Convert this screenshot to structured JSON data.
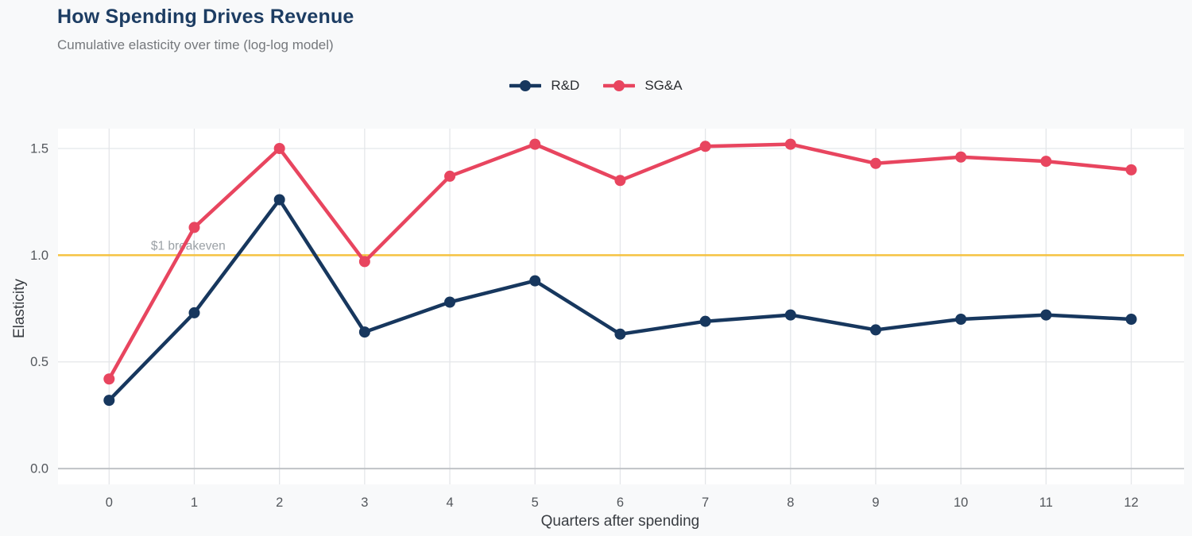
{
  "chart_data": {
    "type": "line",
    "title": "How Spending Drives Revenue",
    "subtitle": "Cumulative elasticity over time (log-log model)",
    "xlabel": "Quarters after spending",
    "ylabel": "Elasticity",
    "x": [
      0,
      1,
      2,
      3,
      4,
      5,
      6,
      7,
      8,
      9,
      10,
      11,
      12
    ],
    "series": [
      {
        "name": "R&D",
        "color": "#17375e",
        "values": [
          0.32,
          0.73,
          1.26,
          0.64,
          0.78,
          0.88,
          0.63,
          0.69,
          0.72,
          0.65,
          0.7,
          0.72,
          0.7
        ]
      },
      {
        "name": "SG&A",
        "color": "#e8455f",
        "values": [
          0.42,
          1.13,
          1.5,
          0.97,
          1.37,
          1.52,
          1.35,
          1.51,
          1.52,
          1.43,
          1.46,
          1.44,
          1.4
        ]
      }
    ],
    "reference_line": {
      "y": 1.0,
      "label": "$1 breakeven",
      "color": "#f5c242",
      "label_color": "#9ba1a6"
    },
    "xticks": [
      0,
      1,
      2,
      3,
      4,
      5,
      6,
      7,
      8,
      9,
      10,
      11,
      12
    ],
    "yticks": [
      0.0,
      0.5,
      1.0,
      1.5
    ],
    "xlim": [
      -0.6,
      12.62
    ],
    "ylim": [
      -0.074,
      1.593
    ],
    "grid": true,
    "legend_position": "top-center",
    "colors": {
      "plot_background": "#ffffff",
      "figure_background": "#f8f9fa",
      "gridline": "#e4e6e9",
      "zero_line": "#bfc2c6",
      "tick_label": "#53575c",
      "axis_title": "#393d42"
    }
  }
}
